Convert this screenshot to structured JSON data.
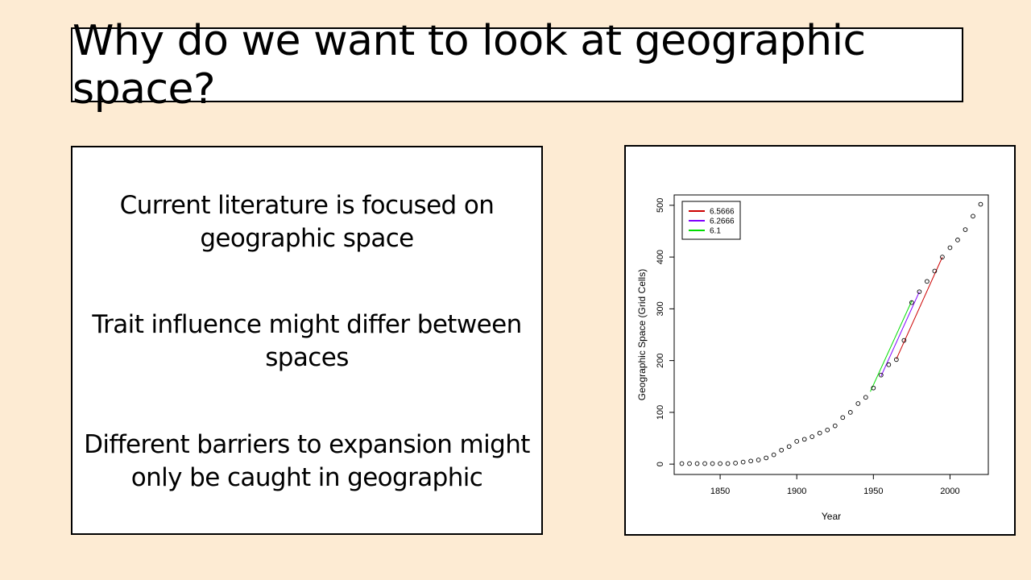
{
  "slide": {
    "title": "Why do we want to look at geographic space?",
    "points": [
      "Current literature is focused on geographic space",
      "Trait influence might differ between spaces",
      "Different barriers to expansion might only be caught in geographic"
    ]
  },
  "chart_data": {
    "type": "scatter",
    "xlabel": "Year",
    "ylabel": "Geographic Space (Grid Cells)",
    "xlim": [
      1820,
      2025
    ],
    "ylim": [
      -20,
      520
    ],
    "x_ticks": [
      1850,
      1900,
      1950,
      2000
    ],
    "y_ticks": [
      0,
      100,
      200,
      300,
      400,
      500
    ],
    "points": {
      "x": [
        1825,
        1830,
        1835,
        1840,
        1845,
        1850,
        1855,
        1860,
        1865,
        1870,
        1875,
        1880,
        1885,
        1890,
        1895,
        1900,
        1905,
        1910,
        1915,
        1920,
        1925,
        1930,
        1935,
        1940,
        1945,
        1950,
        1955,
        1960,
        1965,
        1970,
        1975,
        1980,
        1985,
        1990,
        1995,
        2000,
        2005,
        2010,
        2015,
        2020
      ],
      "y": [
        1,
        1,
        1,
        1,
        1,
        1,
        1,
        2,
        4,
        6,
        8,
        12,
        18,
        27,
        34,
        44,
        48,
        53,
        60,
        66,
        74,
        90,
        100,
        117,
        129,
        147,
        172,
        192,
        202,
        239,
        312,
        333,
        353,
        373,
        400,
        418,
        433,
        453,
        479,
        502
      ]
    },
    "fit_lines": [
      {
        "name": "6.5666",
        "color": "#cc0000",
        "x": [
          1965,
          1995
        ],
        "y": [
          203,
          400
        ]
      },
      {
        "name": "6.2666",
        "color": "#8000ff",
        "x": [
          1955,
          1980
        ],
        "y": [
          170,
          333
        ]
      },
      {
        "name": "6.1",
        "color": "#00dd00",
        "x": [
          1948,
          1975
        ],
        "y": [
          140,
          315
        ]
      }
    ],
    "legend": "top-left"
  }
}
